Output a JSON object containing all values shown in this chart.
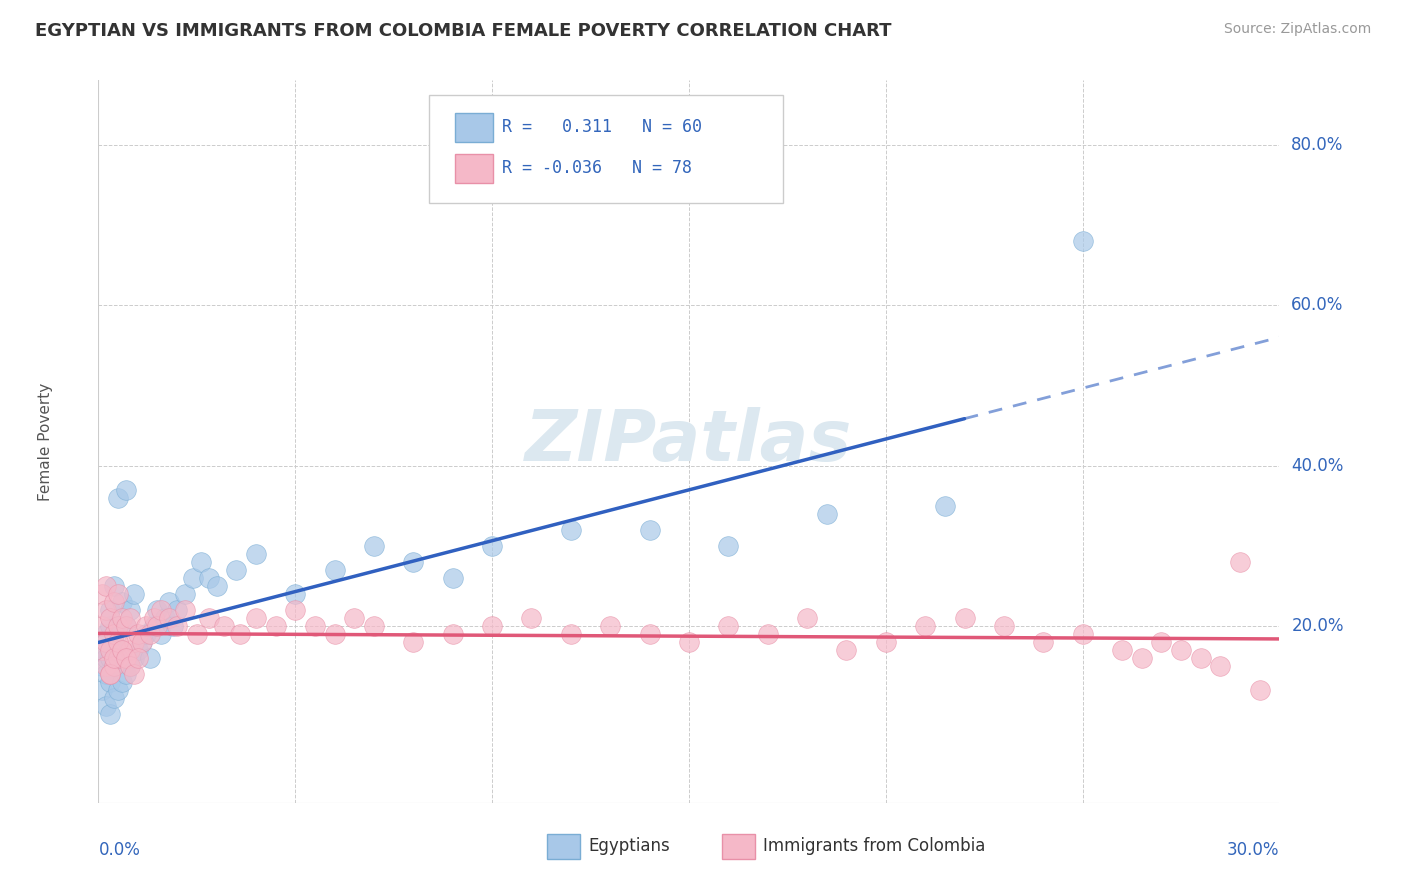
{
  "title": "EGYPTIAN VS IMMIGRANTS FROM COLOMBIA FEMALE POVERTY CORRELATION CHART",
  "source": "Source: ZipAtlas.com",
  "ylabel": "Female Poverty",
  "xlim": [
    0.0,
    0.3
  ],
  "ylim": [
    -0.02,
    0.88
  ],
  "legend_r1_text": "R =   0.311   N = 60",
  "legend_r2_text": "R = -0.036   N = 78",
  "series1_color": "#a8c8e8",
  "series2_color": "#f5b8c8",
  "series1_edge": "#7aadd4",
  "series2_edge": "#e890a8",
  "trendline1_color": "#3060c0",
  "trendline2_color": "#e05878",
  "trendline1_solid_end": 0.22,
  "watermark_color": "#dce8f0",
  "grid_color": "#cccccc",
  "y_ticks": [
    0.2,
    0.4,
    0.6,
    0.8
  ],
  "y_tick_labels": [
    "20.0%",
    "40.0%",
    "60.0%",
    "80.0%"
  ],
  "x_tick_labels": [
    "0.0%",
    "30.0%"
  ],
  "egyptians_x": [
    0.001,
    0.001,
    0.001,
    0.002,
    0.002,
    0.002,
    0.002,
    0.003,
    0.003,
    0.003,
    0.003,
    0.003,
    0.004,
    0.004,
    0.004,
    0.004,
    0.005,
    0.005,
    0.005,
    0.005,
    0.006,
    0.006,
    0.006,
    0.007,
    0.007,
    0.007,
    0.008,
    0.008,
    0.009,
    0.009,
    0.01,
    0.011,
    0.012,
    0.013,
    0.014,
    0.015,
    0.016,
    0.017,
    0.018,
    0.019,
    0.02,
    0.022,
    0.024,
    0.026,
    0.028,
    0.03,
    0.035,
    0.04,
    0.05,
    0.06,
    0.07,
    0.08,
    0.09,
    0.1,
    0.12,
    0.14,
    0.16,
    0.185,
    0.215,
    0.25
  ],
  "egyptians_y": [
    0.12,
    0.15,
    0.17,
    0.1,
    0.14,
    0.16,
    0.19,
    0.09,
    0.13,
    0.16,
    0.2,
    0.22,
    0.11,
    0.15,
    0.18,
    0.25,
    0.12,
    0.16,
    0.2,
    0.36,
    0.13,
    0.17,
    0.23,
    0.14,
    0.2,
    0.37,
    0.15,
    0.22,
    0.16,
    0.24,
    0.17,
    0.18,
    0.19,
    0.16,
    0.2,
    0.22,
    0.19,
    0.21,
    0.23,
    0.2,
    0.22,
    0.24,
    0.26,
    0.28,
    0.26,
    0.25,
    0.27,
    0.29,
    0.24,
    0.27,
    0.3,
    0.28,
    0.26,
    0.3,
    0.32,
    0.32,
    0.3,
    0.34,
    0.35,
    0.68
  ],
  "colombia_x": [
    0.001,
    0.001,
    0.001,
    0.002,
    0.002,
    0.002,
    0.002,
    0.003,
    0.003,
    0.003,
    0.004,
    0.004,
    0.004,
    0.005,
    0.005,
    0.005,
    0.006,
    0.006,
    0.007,
    0.007,
    0.008,
    0.008,
    0.009,
    0.01,
    0.011,
    0.012,
    0.013,
    0.014,
    0.015,
    0.016,
    0.018,
    0.02,
    0.022,
    0.025,
    0.028,
    0.032,
    0.036,
    0.04,
    0.045,
    0.05,
    0.055,
    0.06,
    0.065,
    0.07,
    0.08,
    0.09,
    0.1,
    0.11,
    0.12,
    0.13,
    0.14,
    0.15,
    0.16,
    0.17,
    0.18,
    0.19,
    0.2,
    0.21,
    0.22,
    0.23,
    0.24,
    0.25,
    0.26,
    0.265,
    0.27,
    0.275,
    0.28,
    0.285,
    0.29,
    0.295,
    0.003,
    0.004,
    0.005,
    0.006,
    0.007,
    0.008,
    0.009,
    0.01
  ],
  "colombia_y": [
    0.17,
    0.2,
    0.24,
    0.15,
    0.18,
    0.22,
    0.25,
    0.14,
    0.17,
    0.21,
    0.15,
    0.19,
    0.23,
    0.16,
    0.2,
    0.24,
    0.17,
    0.21,
    0.16,
    0.2,
    0.17,
    0.21,
    0.18,
    0.19,
    0.18,
    0.2,
    0.19,
    0.21,
    0.2,
    0.22,
    0.21,
    0.2,
    0.22,
    0.19,
    0.21,
    0.2,
    0.19,
    0.21,
    0.2,
    0.22,
    0.2,
    0.19,
    0.21,
    0.2,
    0.18,
    0.19,
    0.2,
    0.21,
    0.19,
    0.2,
    0.19,
    0.18,
    0.2,
    0.19,
    0.21,
    0.17,
    0.18,
    0.2,
    0.21,
    0.2,
    0.18,
    0.19,
    0.17,
    0.16,
    0.18,
    0.17,
    0.16,
    0.15,
    0.28,
    0.12,
    0.14,
    0.16,
    0.18,
    0.17,
    0.16,
    0.15,
    0.14,
    0.16
  ]
}
